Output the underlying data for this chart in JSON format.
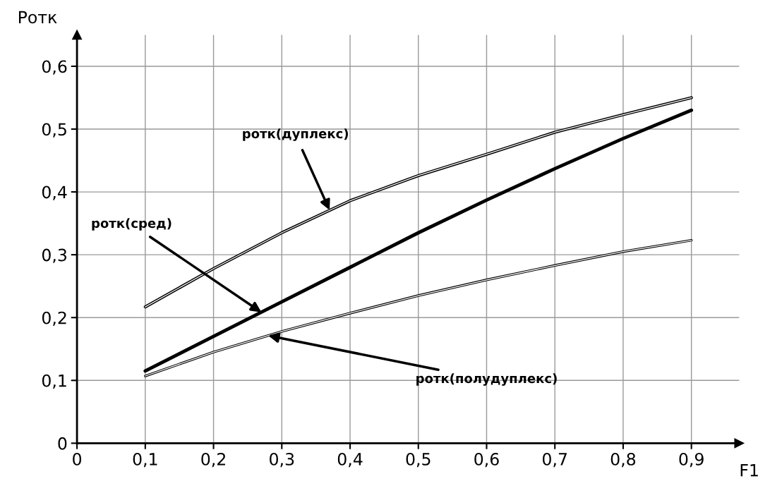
{
  "chart_data": {
    "type": "line",
    "xlabel": "F1",
    "ylabel": "Ротк",
    "x": [
      0.1,
      0.2,
      0.3,
      0.4,
      0.5,
      0.6,
      0.7,
      0.8,
      0.9
    ],
    "series": [
      {
        "color": "#000000",
        "line_style": "solid",
        "values": [
          0.217,
          0.278,
          0.335,
          0.386,
          0.426,
          0.46,
          0.495,
          0.523,
          0.55
        ]
      },
      {
        "color": "#000000",
        "line_style": "solid",
        "values": [
          0.115,
          0.17,
          0.225,
          0.28,
          0.335,
          0.387,
          0.437,
          0.485,
          0.53
        ]
      },
      {
        "color": "#000000",
        "line_style": "solid",
        "values": [
          0.107,
          0.145,
          0.178,
          0.207,
          0.235,
          0.26,
          0.283,
          0.305,
          0.323
        ]
      }
    ],
    "annotations": [
      {
        "text": "ротк(дуплекс)",
        "x": 0.37,
        "y": 0.371
      },
      {
        "text": "ротк(сред)",
        "x": 0.27,
        "y": 0.2085
      },
      {
        "text": "ротк(полудуплекс)",
        "x": 0.28,
        "y": 0.1714
      }
    ],
    "xlim": [
      0,
      0.97
    ],
    "ylim": [
      0,
      0.65
    ],
    "xticks": [
      0,
      {
        "value": 0.1,
        "label": "0,1"
      },
      {
        "value": 0.2,
        "label": "0,2"
      },
      {
        "value": 0.3,
        "label": "0,3"
      },
      {
        "value": 0.4,
        "label": "0,4"
      },
      {
        "value": 0.5,
        "label": "0,5"
      },
      {
        "value": 0.6,
        "label": "0,6"
      },
      {
        "value": 0.7,
        "label": "0,7"
      },
      {
        "value": 0.8,
        "label": "0,8"
      },
      {
        "value": 0.9,
        "label": "0,9"
      }
    ],
    "yticks": [
      0,
      {
        "value": 0.1,
        "label": "0,1"
      },
      {
        "value": 0.2,
        "label": "0,2"
      },
      {
        "value": 0.3,
        "label": "0,3"
      },
      {
        "value": 0.4,
        "label": "0,4"
      },
      {
        "value": 0.5,
        "label": "0,5"
      },
      {
        "value": 0.6,
        "label": "0,6"
      }
    ],
    "grid": true,
    "marker": "none",
    "legend": false
  }
}
